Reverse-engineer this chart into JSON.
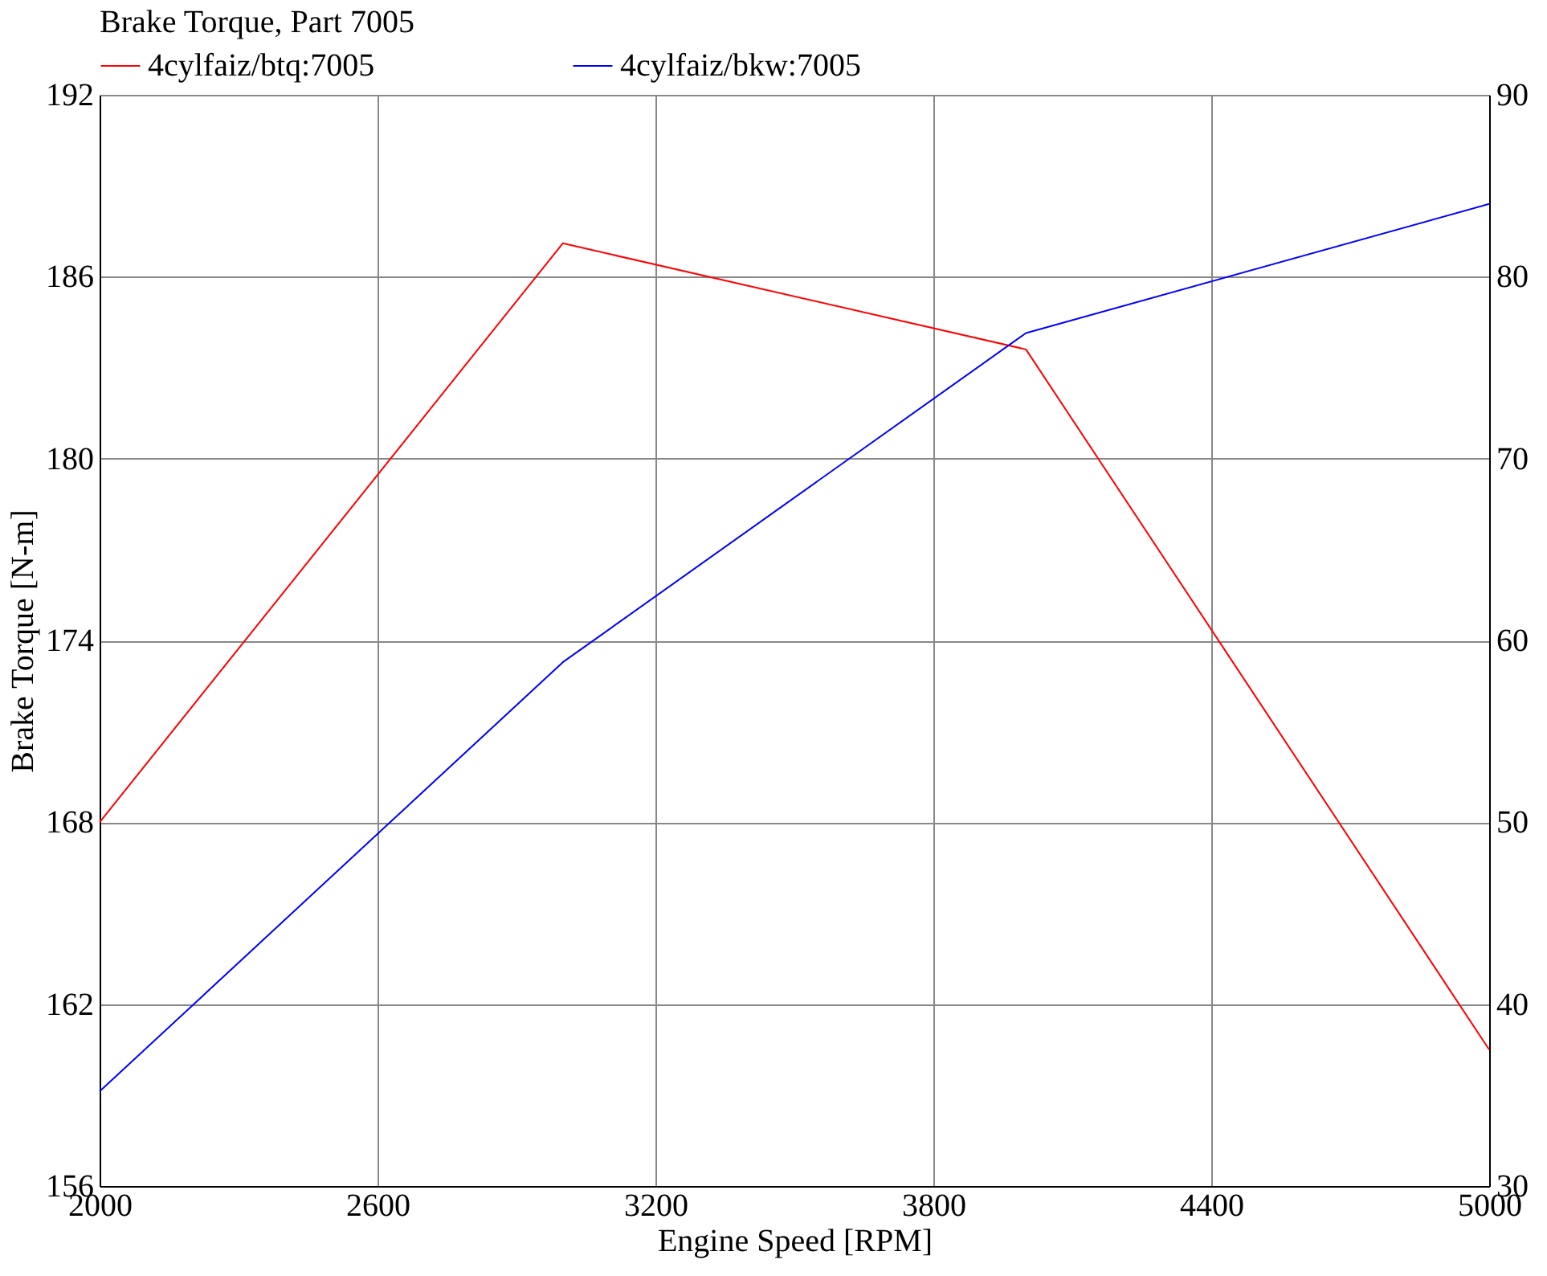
{
  "chart_data": {
    "type": "line",
    "title": "Brake Torque, Part 7005",
    "xlabel": "Engine Speed [RPM]",
    "ylabel": "Brake Torque [N-m]",
    "x": [
      2000,
      3000,
      4000,
      5000
    ],
    "series": [
      {
        "name": "4cylfaiz/btq:7005",
        "color": "#ff0000",
        "values": [
          168.0,
          187.1,
          183.6,
          160.5
        ]
      },
      {
        "name": "4cylfaiz/bkw:7005",
        "color": "#0000ff",
        "values": [
          35.2,
          58.8,
          76.9,
          84.0
        ],
        "axis": "y2"
      }
    ],
    "xlim": [
      2000,
      5000
    ],
    "xticks": [
      2000,
      2600,
      3200,
      3800,
      4400,
      5000
    ],
    "ylim": [
      156,
      192
    ],
    "yticks": [
      156,
      162,
      168,
      174,
      180,
      186,
      192
    ],
    "y2lim": [
      30,
      90
    ],
    "y2ticks": [
      30,
      40,
      50,
      60,
      70,
      80,
      90
    ],
    "grid": true,
    "legend": "top",
    "marker": "none",
    "line_style": "solid"
  }
}
